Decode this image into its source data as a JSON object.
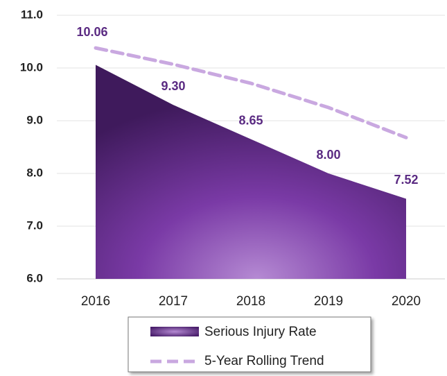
{
  "chart_data": {
    "type": "area",
    "categories": [
      "2016",
      "2017",
      "2018",
      "2019",
      "2020"
    ],
    "series": [
      {
        "name": "Serious Injury Rate",
        "color": "#6a2c91",
        "values": [
          10.06,
          9.3,
          8.65,
          8.0,
          7.52
        ],
        "value_labels": [
          "10.06",
          "9.30",
          "8.65",
          "8.00",
          "7.52"
        ]
      },
      {
        "name": "5-Year Rolling Trend",
        "color": "#c9a8e0",
        "values": [
          10.38,
          10.07,
          9.71,
          9.25,
          8.68
        ],
        "dashed": true
      }
    ],
    "ylim": [
      6,
      11
    ],
    "yticks": [
      {
        "value": 6,
        "label": "6.0"
      },
      {
        "value": 7,
        "label": "7.0"
      },
      {
        "value": 8,
        "label": "8.0"
      },
      {
        "value": 9,
        "label": "9.0"
      },
      {
        "value": 10,
        "label": "10.0"
      },
      {
        "value": 11,
        "label": "11.0"
      }
    ],
    "grid": true,
    "legend": "bottom"
  }
}
